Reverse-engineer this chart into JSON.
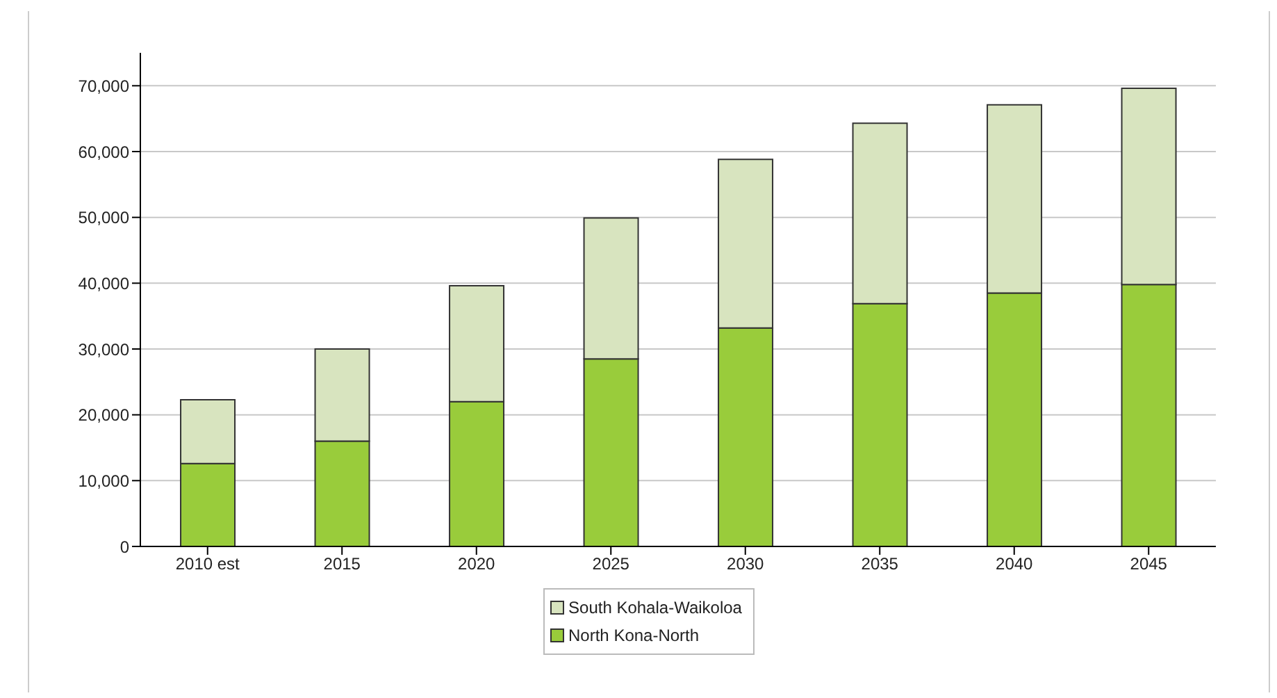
{
  "chart_data": {
    "type": "bar",
    "stacked": true,
    "categories": [
      "2010 est",
      "2015",
      "2020",
      "2025",
      "2030",
      "2035",
      "2040",
      "2045"
    ],
    "series": [
      {
        "name": "North Kona-North",
        "color": "#99cc3b",
        "values": [
          12600,
          16000,
          22000,
          28500,
          33200,
          36900,
          38500,
          39800
        ]
      },
      {
        "name": "South Kohala-Waikoloa",
        "color": "#d8e4bf",
        "values": [
          9700,
          14000,
          17600,
          21400,
          25600,
          27400,
          28600,
          29800
        ]
      }
    ],
    "ylim": [
      0,
      75000
    ],
    "yticks": [
      0,
      {
        "value": 10000,
        "label": "10,000"
      },
      {
        "value": 20000,
        "label": "20,000"
      },
      {
        "value": 30000,
        "label": "30,000"
      },
      {
        "value": 40000,
        "label": "40,000"
      },
      {
        "value": 50000,
        "label": "50,000"
      },
      {
        "value": 60000,
        "label": "60,000"
      },
      {
        "value": 70000,
        "label": "70,000"
      }
    ],
    "grid": "y",
    "legend": "bottom"
  }
}
